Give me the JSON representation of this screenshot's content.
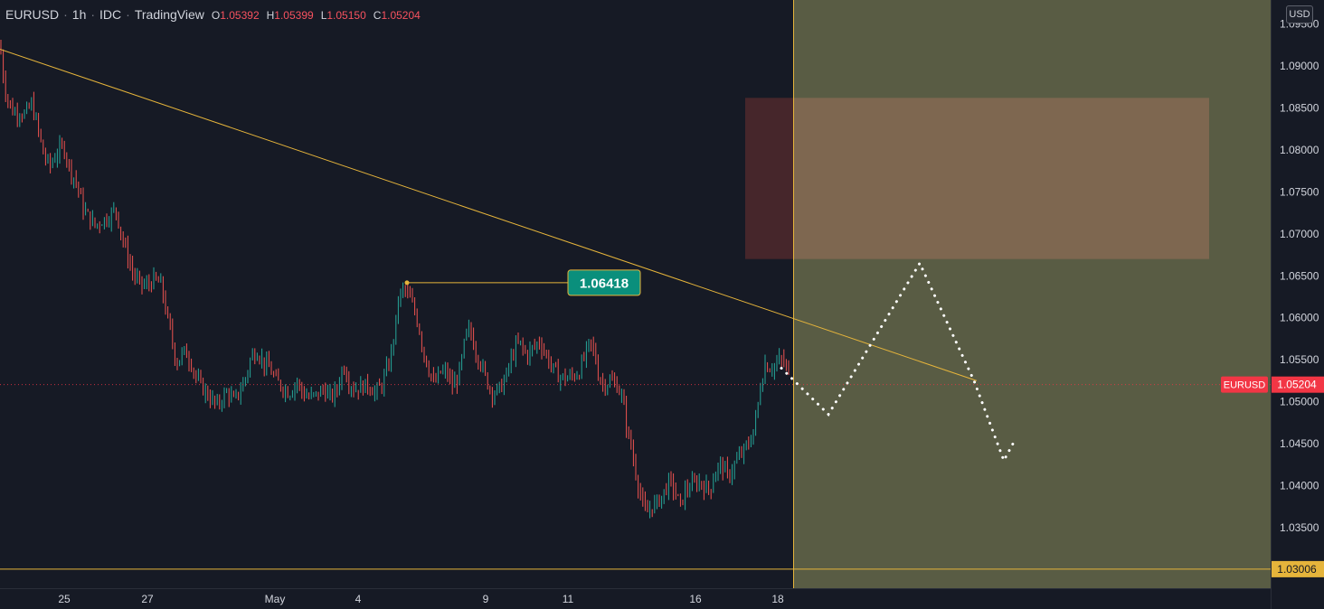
{
  "header": {
    "symbol": "EURUSD",
    "interval": "1h",
    "source": "IDC",
    "platform": "TradingView",
    "open_label": "O",
    "open": "1.05392",
    "high_label": "H",
    "high": "1.05399",
    "low_label": "L",
    "low": "1.05150",
    "close_label": "C",
    "close": "1.05204"
  },
  "currency_badge": "USD",
  "colors": {
    "background": "#161a25",
    "up_candle": "#26a69a",
    "down_candle": "#ef5350",
    "trendline": "#e5b43b",
    "projection_zone": "#595c44",
    "supply_zone_light": "#7e6750",
    "supply_zone_dark": "#46262b",
    "label_green": "#0a8f7c",
    "last_price": "#f23645",
    "axis_text": "#d1d4dc"
  },
  "chart_data": {
    "type": "candlestick",
    "symbol": "EURUSD",
    "timeframe": "1h",
    "ylim": [
      1.027,
      1.098
    ],
    "y_ticks": [
      "1.09500",
      "1.09000",
      "1.08500",
      "1.08000",
      "1.07500",
      "1.07000",
      "1.06500",
      "1.06000",
      "1.05500",
      "1.05000",
      "1.04500",
      "1.04000",
      "1.03500"
    ],
    "x_ticks": [
      "25",
      "27",
      "May",
      "4",
      "9",
      "11",
      "16",
      "18"
    ],
    "price_path": [
      [
        0,
        1.0925
      ],
      [
        5,
        1.0875
      ],
      [
        10,
        1.0855
      ],
      [
        15,
        1.0845
      ],
      [
        22,
        1.0845
      ],
      [
        28,
        1.0842
      ],
      [
        35,
        1.0855
      ],
      [
        42,
        1.0825
      ],
      [
        48,
        1.0795
      ],
      [
        55,
        1.078
      ],
      [
        62,
        1.0795
      ],
      [
        70,
        1.0805
      ],
      [
        78,
        1.0775
      ],
      [
        85,
        1.076
      ],
      [
        92,
        1.073
      ],
      [
        98,
        1.072
      ],
      [
        105,
        1.071
      ],
      [
        112,
        1.0715
      ],
      [
        120,
        1.072
      ],
      [
        128,
        1.073
      ],
      [
        135,
        1.0695
      ],
      [
        142,
        1.067
      ],
      [
        148,
        1.065
      ],
      [
        155,
        1.064
      ],
      [
        162,
        1.0638
      ],
      [
        170,
        1.0645
      ],
      [
        178,
        1.064
      ],
      [
        185,
        1.06
      ],
      [
        190,
        1.0575
      ],
      [
        195,
        1.0545
      ],
      [
        200,
        1.0555
      ],
      [
        205,
        1.056
      ],
      [
        212,
        1.0545
      ],
      [
        218,
        1.0525
      ],
      [
        225,
        1.0515
      ],
      [
        232,
        1.0505
      ],
      [
        240,
        1.0495
      ],
      [
        246,
        1.0505
      ],
      [
        252,
        1.0512
      ],
      [
        258,
        1.05
      ],
      [
        265,
        1.0512
      ],
      [
        272,
        1.053
      ],
      [
        278,
        1.0555
      ],
      [
        285,
        1.056
      ],
      [
        292,
        1.0545
      ],
      [
        298,
        1.054
      ],
      [
        305,
        1.0525
      ],
      [
        312,
        1.0518
      ],
      [
        320,
        1.051
      ],
      [
        328,
        1.0525
      ],
      [
        335,
        1.051
      ],
      [
        342,
        1.0505
      ],
      [
        350,
        1.0508
      ],
      [
        358,
        1.0515
      ],
      [
        365,
        1.0505
      ],
      [
        372,
        1.0512
      ],
      [
        380,
        1.0545
      ],
      [
        385,
        1.0525
      ],
      [
        392,
        1.0515
      ],
      [
        400,
        1.0518
      ],
      [
        408,
        1.052
      ],
      [
        415,
        1.051
      ],
      [
        422,
        1.052
      ],
      [
        430,
        1.0545
      ],
      [
        436,
        1.058
      ],
      [
        441,
        1.0625
      ],
      [
        447,
        1.0635
      ],
      [
        452,
        1.0625
      ],
      [
        458,
        1.061
      ],
      [
        463,
        1.059
      ],
      [
        468,
        1.056
      ],
      [
        474,
        1.054
      ],
      [
        480,
        1.052
      ],
      [
        487,
        1.0535
      ],
      [
        494,
        1.0535
      ],
      [
        500,
        1.0518
      ],
      [
        505,
        1.0525
      ],
      [
        510,
        1.0545
      ],
      [
        515,
        1.058
      ],
      [
        520,
        1.0585
      ],
      [
        526,
        1.056
      ],
      [
        532,
        1.0545
      ],
      [
        538,
        1.0525
      ],
      [
        545,
        1.051
      ],
      [
        552,
        1.0515
      ],
      [
        558,
        1.0525
      ],
      [
        565,
        1.055
      ],
      [
        570,
        1.0565
      ],
      [
        575,
        1.057
      ],
      [
        582,
        1.0555
      ],
      [
        590,
        1.0565
      ],
      [
        597,
        1.0572
      ],
      [
        604,
        1.0555
      ],
      [
        611,
        1.054
      ],
      [
        618,
        1.053
      ],
      [
        625,
        1.0528
      ],
      [
        632,
        1.053
      ],
      [
        640,
        1.0535
      ],
      [
        647,
        1.0555
      ],
      [
        652,
        1.057
      ],
      [
        657,
        1.056
      ],
      [
        662,
        1.053
      ],
      [
        668,
        1.052
      ],
      [
        675,
        1.0525
      ],
      [
        682,
        1.052
      ],
      [
        688,
        1.0505
      ],
      [
        693,
        1.047
      ],
      [
        698,
        1.0445
      ],
      [
        704,
        1.041
      ],
      [
        709,
        1.0385
      ],
      [
        714,
        1.0365
      ],
      [
        720,
        1.0375
      ],
      [
        727,
        1.038
      ],
      [
        733,
        1.039
      ],
      [
        740,
        1.0405
      ],
      [
        746,
        1.0395
      ],
      [
        752,
        1.0375
      ],
      [
        758,
        1.0395
      ],
      [
        765,
        1.04
      ],
      [
        772,
        1.0405
      ],
      [
        778,
        1.04
      ],
      [
        785,
        1.0395
      ],
      [
        792,
        1.042
      ],
      [
        798,
        1.0425
      ],
      [
        805,
        1.041
      ],
      [
        812,
        1.0425
      ],
      [
        818,
        1.0435
      ],
      [
        825,
        1.0445
      ],
      [
        830,
        1.0455
      ],
      [
        836,
        1.048
      ],
      [
        841,
        1.052
      ],
      [
        846,
        1.0545
      ],
      [
        852,
        1.054
      ],
      [
        858,
        1.0545
      ],
      [
        864,
        1.055
      ],
      [
        870,
        1.054
      ],
      [
        876,
        1.052
      ]
    ],
    "annotations": {
      "high_marker": {
        "price": 1.06418,
        "label": "1.06418"
      },
      "last_price": {
        "price": 1.05204,
        "label": "1.05204",
        "tag": "EURUSD"
      },
      "support_line": {
        "price": 1.03006,
        "label": "1.03006"
      },
      "supply_zone": {
        "top": 1.0862,
        "bottom": 1.067
      },
      "trendline": {
        "from_price": 1.092,
        "to_price": 1.0525
      },
      "projection_path": [
        1.054,
        1.0485,
        1.0665,
        1.0525,
        1.043,
        1.045
      ]
    }
  }
}
